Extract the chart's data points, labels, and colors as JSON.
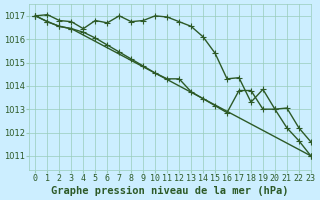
{
  "title": "Graphe pression niveau de la mer (hPa)",
  "bg_color": "#cceeff",
  "grid_color": "#99ccbb",
  "line_color": "#2d5a27",
  "xlim": [
    -0.5,
    23
  ],
  "ylim": [
    1010.4,
    1017.5
  ],
  "yticks": [
    1011,
    1012,
    1013,
    1014,
    1015,
    1016,
    1017
  ],
  "xticks": [
    0,
    1,
    2,
    3,
    4,
    5,
    6,
    7,
    8,
    9,
    10,
    11,
    12,
    13,
    14,
    15,
    16,
    17,
    18,
    19,
    20,
    21,
    22,
    23
  ],
  "series1_x": [
    0,
    1,
    2,
    3,
    4,
    5,
    6,
    7,
    8,
    9,
    10,
    11,
    12,
    13,
    14,
    15,
    16,
    17,
    18,
    19,
    20,
    21,
    22,
    23
  ],
  "series1_y": [
    1017.0,
    1017.05,
    1016.8,
    1016.75,
    1016.45,
    1016.8,
    1016.7,
    1017.0,
    1016.75,
    1016.8,
    1017.0,
    1016.95,
    1016.75,
    1016.55,
    1016.1,
    1015.4,
    1014.3,
    1014.35,
    1013.3,
    1013.85,
    1013.0,
    1013.05,
    1012.2,
    1011.6
  ],
  "series1_markers": [
    0,
    1,
    2,
    3,
    5,
    7,
    8,
    10,
    11,
    12,
    13,
    14,
    15,
    16,
    17,
    18,
    19,
    20,
    21,
    22,
    23
  ],
  "series2_x": [
    0,
    1,
    2,
    3,
    23
  ],
  "series2_y": [
    1017.0,
    1016.75,
    1016.55,
    1016.45,
    1011.0
  ],
  "series2_markers": [
    0,
    1,
    2,
    3,
    23
  ],
  "series3_x": [
    0,
    1,
    2,
    3,
    4,
    5,
    6,
    7,
    8,
    9,
    10,
    11,
    12,
    13,
    14,
    15,
    16,
    17,
    18,
    19,
    20,
    21,
    22,
    23
  ],
  "series3_y": [
    1017.0,
    1016.75,
    1016.55,
    1016.45,
    1016.3,
    1016.05,
    1015.75,
    1015.45,
    1015.15,
    1014.85,
    1014.55,
    1014.3,
    1014.3,
    1013.75,
    1013.45,
    1013.15,
    1012.85,
    1013.8,
    1013.8,
    1013.0,
    1013.0,
    1012.2,
    1011.65,
    1011.0
  ],
  "series3_markers": [
    0,
    1,
    2,
    3,
    4,
    5,
    9,
    10,
    11,
    12,
    13,
    14,
    15,
    16,
    17,
    18,
    19,
    20,
    21,
    22,
    23
  ],
  "line_width": 1.0,
  "marker_size": 4,
  "tick_fontsize": 6,
  "title_fontsize": 7.5
}
